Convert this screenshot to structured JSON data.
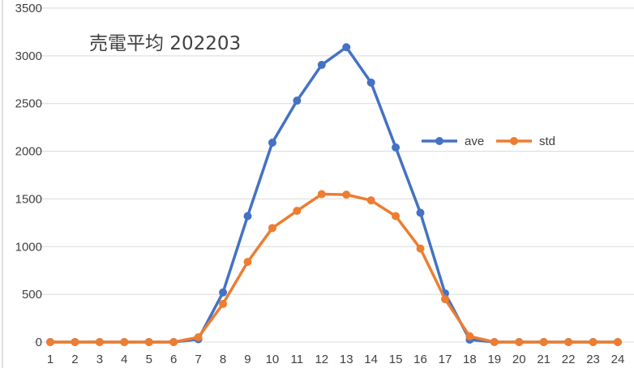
{
  "chart_data": {
    "type": "line",
    "title": "売電平均 202203",
    "xlabel": "",
    "ylabel": "",
    "x": [
      1,
      2,
      3,
      4,
      5,
      6,
      7,
      8,
      9,
      10,
      11,
      12,
      13,
      14,
      15,
      16,
      17,
      18,
      19,
      20,
      21,
      22,
      23,
      24
    ],
    "ylim": [
      0,
      3500
    ],
    "yticks": [
      0,
      500,
      1000,
      1500,
      2000,
      2500,
      3000,
      3500
    ],
    "grid": true,
    "legend_position": "right",
    "series": [
      {
        "name": "ave",
        "color": "#4472C4",
        "values": [
          0,
          0,
          0,
          0,
          0,
          0,
          30,
          520,
          1320,
          2090,
          2530,
          2905,
          3090,
          2720,
          2040,
          1355,
          510,
          25,
          0,
          0,
          0,
          0,
          0,
          0
        ]
      },
      {
        "name": "std",
        "color": "#ED7D31",
        "values": [
          0,
          0,
          0,
          0,
          0,
          0,
          50,
          400,
          840,
          1195,
          1375,
          1550,
          1545,
          1485,
          1320,
          980,
          450,
          60,
          0,
          0,
          0,
          0,
          0,
          0
        ]
      }
    ]
  }
}
